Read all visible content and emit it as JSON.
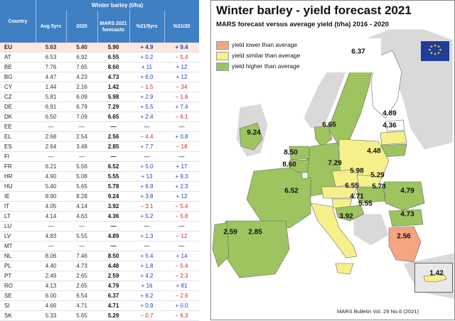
{
  "table": {
    "super_header": "Winter barley (t/ha)",
    "headers": [
      "Country",
      "Avg 5yrs",
      "2020",
      "MARS 2021 forecasts",
      "%21/5yrs",
      "%21/20"
    ],
    "rows": [
      [
        "EU",
        "5.63",
        "5.40",
        "5.90",
        "+ 4.9",
        "+ 9.4"
      ],
      [
        "AT",
        "6.53",
        "6.92",
        "6.55",
        "+ 0.2",
        "− 5.4"
      ],
      [
        "BE",
        "7.76",
        "7.65",
        "8.60",
        "+ 11",
        "+ 12"
      ],
      [
        "BG",
        "4.47",
        "4.23",
        "4.73",
        "+ 6.0",
        "+ 12"
      ],
      [
        "CY",
        "1.44",
        "2.16",
        "1.42",
        "− 1.5",
        "− 34"
      ],
      [
        "CZ",
        "5.81",
        "6.09",
        "5.98",
        "+ 2.9",
        "− 1.8"
      ],
      [
        "DE",
        "6.91",
        "6.79",
        "7.29",
        "+ 5.5",
        "+ 7.4"
      ],
      [
        "DK",
        "6.50",
        "7.09",
        "6.65",
        "+ 2.4",
        "− 6.1"
      ],
      [
        "EE",
        "—",
        "—",
        "—",
        "—",
        "—"
      ],
      [
        "EL",
        "2.68",
        "2.54",
        "2.56",
        "− 4.4",
        "+ 0.8"
      ],
      [
        "ES",
        "2.64",
        "3.48",
        "2.85",
        "+ 7.7",
        "− 18"
      ],
      [
        "FI",
        "—",
        "—",
        "—",
        "—",
        "—"
      ],
      [
        "FR",
        "6.21",
        "5.56",
        "6.52",
        "+ 5.0",
        "+ 17"
      ],
      [
        "HR",
        "4.90",
        "5.08",
        "5.55",
        "+ 13",
        "+ 9.3"
      ],
      [
        "HU",
        "5.40",
        "5.65",
        "5.78",
        "+ 6.9",
        "+ 2.3"
      ],
      [
        "IE",
        "8.90",
        "8.28",
        "9.24",
        "+ 3.8",
        "+ 12"
      ],
      [
        "IT",
        "4.05",
        "4.14",
        "3.92",
        "− 3.1",
        "− 5.4"
      ],
      [
        "LT",
        "4.14",
        "4.63",
        "4.36",
        "+ 5.2",
        "− 5.8"
      ],
      [
        "LU",
        "—",
        "—",
        "—",
        "—",
        "—"
      ],
      [
        "LV",
        "4.83",
        "5.55",
        "4.89",
        "+ 1.3",
        "− 12"
      ],
      [
        "MT",
        "—",
        "—",
        "—",
        "—",
        "—"
      ],
      [
        "NL",
        "8.06",
        "7.46",
        "8.50",
        "+ 5.4",
        "+ 14"
      ],
      [
        "PL",
        "4.40",
        "4.73",
        "4.48",
        "+ 1.8",
        "− 5.4"
      ],
      [
        "PT",
        "2.49",
        "2.65",
        "2.59",
        "+ 4.2",
        "− 2.3"
      ],
      [
        "RO",
        "4.13",
        "2.65",
        "4.79",
        "+ 16",
        "+ 81"
      ],
      [
        "SE",
        "6.00",
        "6.54",
        "6.37",
        "+ 6.2",
        "− 2.6"
      ],
      [
        "SI",
        "4.66",
        "4.71",
        "4.71",
        "+ 0.9",
        "+ 0.0"
      ],
      [
        "SK",
        "5.33",
        "5.65",
        "5.29",
        "− 0.7",
        "− 6.3"
      ]
    ]
  },
  "map": {
    "title": "Winter barley - yield forecast 2021",
    "subtitle": "MARS forecast versus average yield (t/ha) 2016 - 2020",
    "legend": [
      {
        "label": "yield lower than average",
        "color": "#f4a582"
      },
      {
        "label": "yield similar than average",
        "color": "#f5f08a"
      },
      {
        "label": "yield higher than average",
        "color": "#9dc45f"
      }
    ],
    "labels": [
      {
        "code": "SE",
        "value": "6.37",
        "color": "#9dc45f"
      },
      {
        "code": "LV",
        "value": "4.89",
        "color": "#f5f08a"
      },
      {
        "code": "LT",
        "value": "4.36",
        "color": "#9dc45f"
      },
      {
        "code": "DK",
        "value": "6.65",
        "color": "#9dc45f"
      },
      {
        "code": "IE",
        "value": "9.24",
        "color": "#9dc45f"
      },
      {
        "code": "NL",
        "value": "8.50",
        "color": "#9dc45f"
      },
      {
        "code": "BE",
        "value": "8.60",
        "color": "#9dc45f"
      },
      {
        "code": "DE",
        "value": "7.29",
        "color": "#9dc45f"
      },
      {
        "code": "PL",
        "value": "4.48",
        "color": "#f5f08a"
      },
      {
        "code": "CZ",
        "value": "5.98",
        "color": "#f5f08a"
      },
      {
        "code": "SK",
        "value": "5.29",
        "color": "#f5f08a"
      },
      {
        "code": "AT",
        "value": "6.55",
        "color": "#f5f08a"
      },
      {
        "code": "HU",
        "value": "5.78",
        "color": "#9dc45f"
      },
      {
        "code": "SI",
        "value": "4.71",
        "color": "#f5f08a"
      },
      {
        "code": "HR",
        "value": "5.55",
        "color": "#9dc45f"
      },
      {
        "code": "RO",
        "value": "4.79",
        "color": "#9dc45f"
      },
      {
        "code": "BG",
        "value": "4.73",
        "color": "#9dc45f"
      },
      {
        "code": "FR",
        "value": "6.52",
        "color": "#9dc45f"
      },
      {
        "code": "IT",
        "value": "3.92",
        "color": "#f5f08a"
      },
      {
        "code": "PT",
        "value": "2.59",
        "color": "#9dc45f"
      },
      {
        "code": "ES",
        "value": "2.85",
        "color": "#9dc45f"
      },
      {
        "code": "EL",
        "value": "2.56",
        "color": "#f4a582"
      },
      {
        "code": "CY",
        "value": "1.42",
        "color": "#f5f08a"
      }
    ],
    "footer": "MARS Bulletin Vol. 29 No.6 (2021)"
  }
}
